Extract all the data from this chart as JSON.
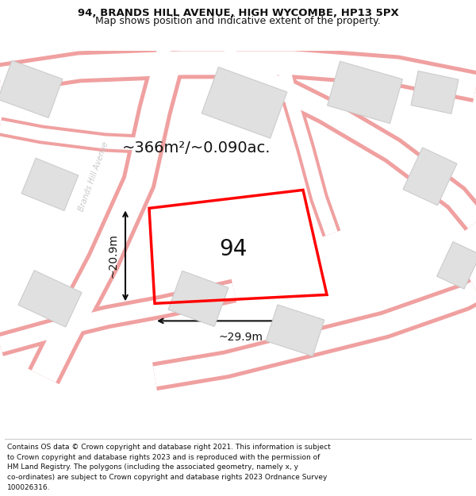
{
  "title_line1": "94, BRANDS HILL AVENUE, HIGH WYCOMBE, HP13 5PX",
  "title_line2": "Map shows position and indicative extent of the property.",
  "footer_lines": [
    "Contains OS data © Crown copyright and database right 2021. This information is subject",
    "to Crown copyright and database rights 2023 and is reproduced with the permission of",
    "HM Land Registry. The polygons (including the associated geometry, namely x, y",
    "co-ordinates) are subject to Crown copyright and database rights 2023 Ordnance Survey",
    "100026316."
  ],
  "area_label": "~366m²/~0.090ac.",
  "number_label": "94",
  "width_label": "~29.9m",
  "height_label": "~20.9m",
  "street_label": "Brands Hill Avenue",
  "bg_color": "#f9f9f9",
  "road_edge_color": "#f0a0a0",
  "road_inner_color": "#ffffff",
  "building_fill": "#e0e0e0",
  "building_edge": "#cccccc",
  "parcel_edge": "#ff0000",
  "dim_color": "#111111",
  "title_fontsize": 9.5,
  "footer_fontsize": 6.5,
  "area_fontsize": 14,
  "number_fontsize": 20,
  "dim_fontsize": 10,
  "street_fontsize": 7
}
